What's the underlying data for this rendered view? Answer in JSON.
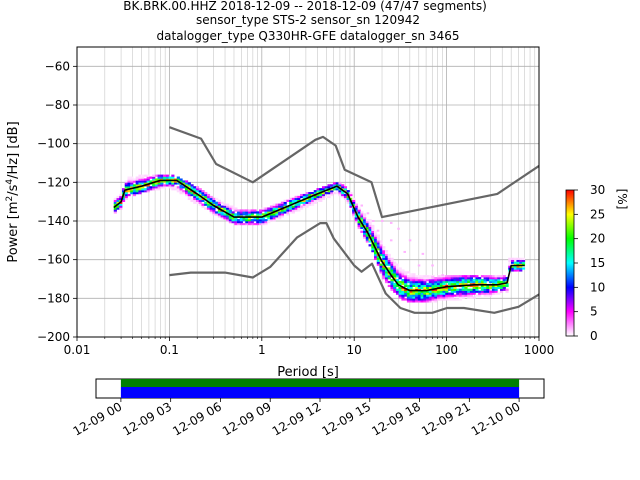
{
  "title_lines": [
    "BK.BRK.00.HHZ   2018-12-09 -- 2018-12-09  (47/47 segments)",
    "sensor_type STS-2 sensor_sn 120942",
    "datalogger_type Q330HR-GFE datalogger_sn 3465"
  ],
  "chart_data": {
    "type": "heatmap",
    "xlabel": "Period [s]",
    "ylabel_parts": [
      "Power [m",
      "2",
      "/s",
      "4",
      "/Hz] [dB]"
    ],
    "xscale": "log",
    "xlim": [
      0.01,
      1000
    ],
    "ylim": [
      -200,
      -50
    ],
    "xticks": [
      {
        "value": 0.01,
        "label": "0.01"
      },
      {
        "value": 0.1,
        "label": "0.1"
      },
      {
        "value": 1,
        "label": "1"
      },
      {
        "value": 10,
        "label": "10"
      },
      {
        "value": 100,
        "label": "100"
      },
      {
        "value": 1000,
        "label": "1000"
      }
    ],
    "yticks": [
      {
        "value": -60,
        "label": "−60"
      },
      {
        "value": -80,
        "label": "−80"
      },
      {
        "value": -100,
        "label": "−100"
      },
      {
        "value": -120,
        "label": "−120"
      },
      {
        "value": -140,
        "label": "−140"
      },
      {
        "value": -160,
        "label": "−160"
      },
      {
        "value": -180,
        "label": "−180"
      },
      {
        "value": -200,
        "label": "−200"
      }
    ],
    "grid": true,
    "colorbar": {
      "label": "[%]",
      "range": [
        0,
        30
      ],
      "ticks": [
        {
          "value": 0,
          "label": "0"
        },
        {
          "value": 5,
          "label": "5"
        },
        {
          "value": 10,
          "label": "10"
        },
        {
          "value": 15,
          "label": "15"
        },
        {
          "value": 20,
          "label": "20"
        },
        {
          "value": 25,
          "label": "25"
        },
        {
          "value": 30,
          "label": "30"
        }
      ],
      "colors": [
        "#ffffff",
        "#ff00ff",
        "#0000ff",
        "#00ffff",
        "#00ff00",
        "#ffff00",
        "#ff0000"
      ]
    },
    "series": [
      {
        "role": "high_noise_model",
        "color": "#666666",
        "points": [
          [
            0.1,
            -91.5
          ],
          [
            0.22,
            -97.4
          ],
          [
            0.32,
            -110.5
          ],
          [
            0.8,
            -120
          ],
          [
            3.8,
            -98
          ],
          [
            4.6,
            -96.5
          ],
          [
            6.3,
            -101
          ],
          [
            7.9,
            -113.5
          ],
          [
            15.4,
            -120
          ],
          [
            20,
            -138
          ],
          [
            354,
            -126
          ],
          [
            1000,
            -111.5
          ]
        ]
      },
      {
        "role": "low_noise_model",
        "color": "#666666",
        "points": [
          [
            0.1,
            -168
          ],
          [
            0.17,
            -166.7
          ],
          [
            0.4,
            -166.7
          ],
          [
            0.8,
            -169.2
          ],
          [
            1.24,
            -163.7
          ],
          [
            2.4,
            -148.6
          ],
          [
            4.3,
            -141.1
          ],
          [
            5,
            -141.1
          ],
          [
            6,
            -149
          ],
          [
            10,
            -163
          ],
          [
            12,
            -166.2
          ],
          [
            15.6,
            -162.1
          ],
          [
            21.9,
            -177.5
          ],
          [
            31.6,
            -185
          ],
          [
            45,
            -187.5
          ],
          [
            70,
            -187.5
          ],
          [
            101,
            -185
          ],
          [
            154,
            -185
          ],
          [
            328,
            -187.5
          ],
          [
            600,
            -184.4
          ],
          [
            1000,
            -178
          ]
        ]
      },
      {
        "role": "median",
        "color": "#000000",
        "points": [
          [
            0.025,
            -133
          ],
          [
            0.03,
            -130
          ],
          [
            0.033,
            -124
          ],
          [
            0.05,
            -122
          ],
          [
            0.08,
            -119
          ],
          [
            0.12,
            -119
          ],
          [
            0.2,
            -126
          ],
          [
            0.3,
            -132
          ],
          [
            0.5,
            -138
          ],
          [
            1,
            -138
          ],
          [
            2,
            -132
          ],
          [
            4,
            -126
          ],
          [
            6.5,
            -122
          ],
          [
            8.5,
            -126
          ],
          [
            11,
            -138
          ],
          [
            14,
            -146
          ],
          [
            20,
            -161
          ],
          [
            25,
            -168
          ],
          [
            30,
            -173
          ],
          [
            40,
            -176
          ],
          [
            60,
            -176
          ],
          [
            100,
            -174
          ],
          [
            200,
            -173
          ],
          [
            350,
            -173
          ],
          [
            450,
            -172
          ],
          [
            500,
            -163
          ],
          [
            700,
            -163
          ]
        ]
      },
      {
        "role": "density_upper_edge",
        "points": [
          [
            0.025,
            -129
          ],
          [
            0.03,
            -126
          ],
          [
            0.035,
            -118
          ],
          [
            0.06,
            -116
          ],
          [
            0.1,
            -116
          ],
          [
            0.16,
            -120
          ],
          [
            0.3,
            -128
          ],
          [
            0.55,
            -134
          ],
          [
            1,
            -134
          ],
          [
            2,
            -129
          ],
          [
            4,
            -124
          ],
          [
            6.5,
            -120
          ],
          [
            8.5,
            -123
          ],
          [
            11,
            -133
          ],
          [
            15,
            -140
          ],
          [
            20,
            -152
          ],
          [
            26,
            -160
          ],
          [
            32,
            -165
          ],
          [
            45,
            -168
          ],
          [
            80,
            -169
          ],
          [
            150,
            -168
          ],
          [
            300,
            -168
          ],
          [
            450,
            -168
          ],
          [
            470,
            -159
          ],
          [
            700,
            -159
          ]
        ]
      },
      {
        "role": "density_lower_edge",
        "points": [
          [
            0.025,
            -136
          ],
          [
            0.03,
            -133
          ],
          [
            0.035,
            -127
          ],
          [
            0.06,
            -124
          ],
          [
            0.1,
            -122
          ],
          [
            0.16,
            -128
          ],
          [
            0.3,
            -136
          ],
          [
            0.55,
            -142
          ],
          [
            1,
            -142
          ],
          [
            2,
            -136
          ],
          [
            4,
            -130
          ],
          [
            6.5,
            -125
          ],
          [
            8.5,
            -130
          ],
          [
            11,
            -143
          ],
          [
            15,
            -153
          ],
          [
            20,
            -168
          ],
          [
            26,
            -176
          ],
          [
            32,
            -180
          ],
          [
            45,
            -182
          ],
          [
            80,
            -181
          ],
          [
            150,
            -180
          ],
          [
            300,
            -178
          ],
          [
            450,
            -176
          ],
          [
            470,
            -166
          ],
          [
            700,
            -166
          ]
        ]
      },
      {
        "role": "sparse_outliers",
        "points": [
          [
            12,
            -132
          ],
          [
            14,
            -136
          ],
          [
            16,
            -140
          ],
          [
            20,
            -140
          ],
          [
            25,
            -141
          ],
          [
            30,
            -144
          ],
          [
            40,
            -150
          ],
          [
            55,
            -157
          ],
          [
            70,
            -163
          ],
          [
            90,
            -168
          ],
          [
            18,
            -145
          ],
          [
            25,
            -150
          ],
          [
            35,
            -156
          ],
          [
            50,
            -163
          ],
          [
            70,
            -169
          ]
        ]
      }
    ]
  },
  "timeline": {
    "ticks": [
      "12-09 00",
      "12-09 03",
      "12-09 06",
      "12-09 09",
      "12-09 12",
      "12-09 15",
      "12-09 18",
      "12-09 21",
      "12-10 00"
    ],
    "range_hours": [
      -1.5,
      25.5
    ],
    "coverage_hours": [
      0,
      24
    ],
    "coverage_colors": [
      "#008000",
      "#0000ff"
    ]
  }
}
